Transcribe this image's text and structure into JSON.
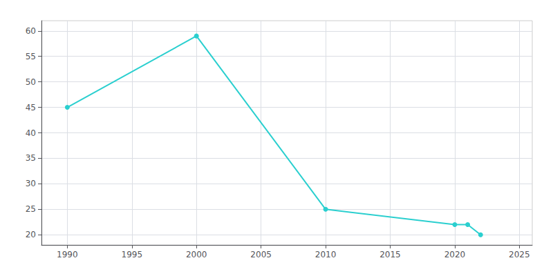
{
  "chart_data": {
    "type": "line",
    "x": [
      1990,
      2000,
      2010,
      2020,
      2021,
      2022
    ],
    "values": [
      45,
      59,
      25,
      22,
      22,
      20
    ],
    "color": "#2acfcf",
    "marker": "circle",
    "xlim": [
      1988,
      2026
    ],
    "ylim": [
      18,
      62
    ],
    "xticks": [
      1990,
      1995,
      2000,
      2005,
      2010,
      2015,
      2020,
      2025
    ],
    "yticks": [
      20,
      25,
      30,
      35,
      40,
      45,
      50,
      55,
      60
    ],
    "grid": true
  }
}
